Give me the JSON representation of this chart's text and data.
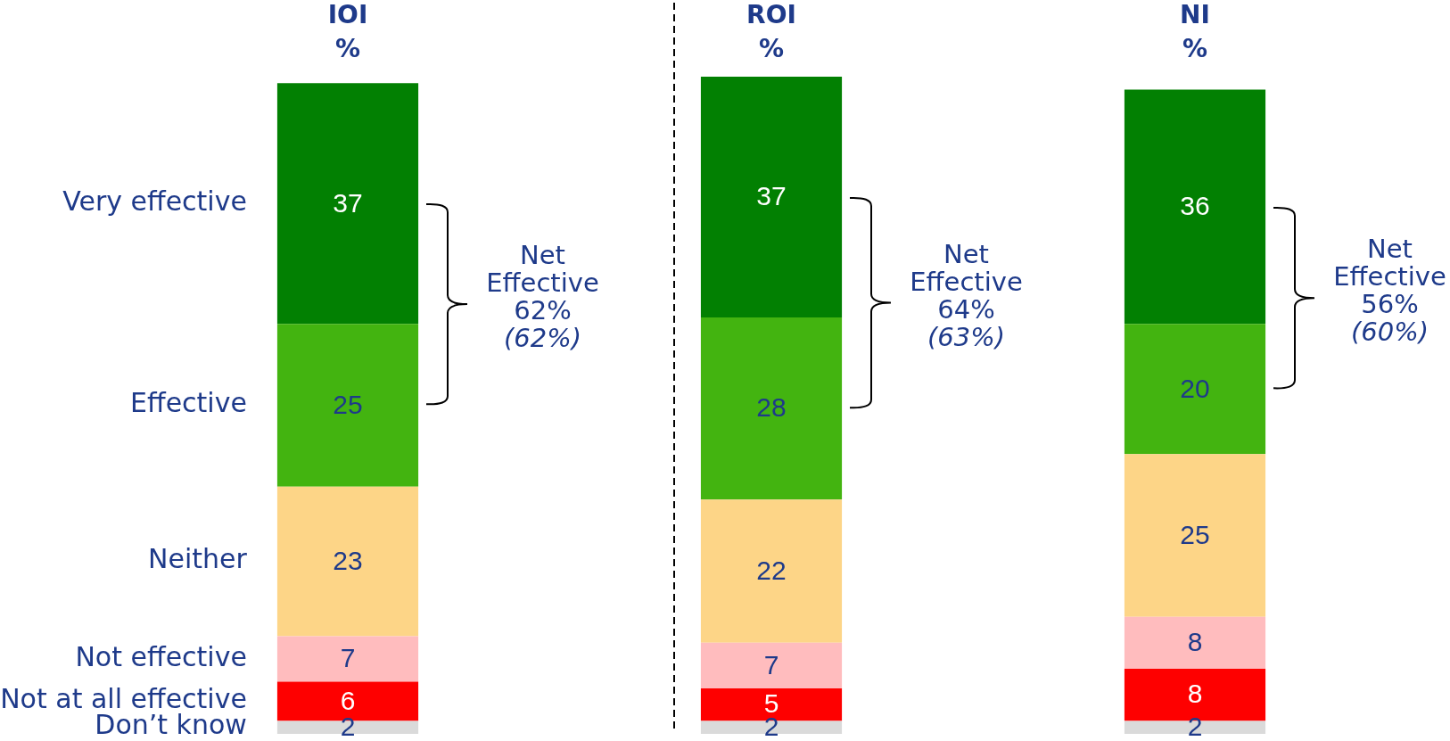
{
  "chart_data": {
    "type": "bar",
    "stacked": true,
    "categories": [
      "IOI %",
      "ROI %",
      "NI %"
    ],
    "series": [
      {
        "name": "Don’t know",
        "color": "#dadada",
        "values": [
          2,
          2,
          2
        ]
      },
      {
        "name": "Not at all effective",
        "color": "#fe0000",
        "values": [
          6,
          5,
          8
        ]
      },
      {
        "name": "Not effective",
        "color": "#ffbcbe",
        "values": [
          7,
          7,
          8
        ]
      },
      {
        "name": "Neither",
        "color": "#fdd587",
        "values": [
          23,
          22,
          25
        ]
      },
      {
        "name": "Effective",
        "color": "#43b410",
        "values": [
          25,
          28,
          20
        ]
      },
      {
        "name": "Very effective",
        "color": "#028002",
        "values": [
          37,
          37,
          36
        ]
      }
    ],
    "ylim": [
      0,
      101
    ],
    "tick_labels": "x",
    "data_labels": true,
    "annotations": [
      "Net Effective 62%",
      "(62%)",
      "Net Effective 64%",
      "(63%)",
      "Net Effective 56%",
      "(60%)"
    ]
  }
}
